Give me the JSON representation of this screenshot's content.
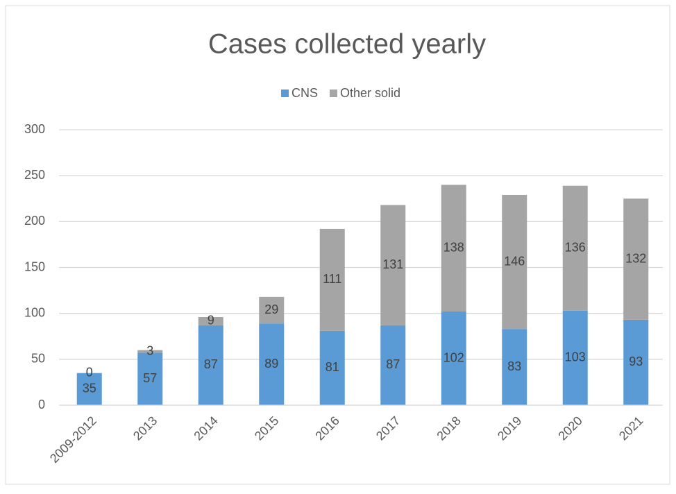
{
  "chart_data": {
    "type": "stacked_bar",
    "title": "Cases collected yearly",
    "categories": [
      "2009-2012",
      "2013",
      "2014",
      "2015",
      "2016",
      "2017",
      "2018",
      "2019",
      "2020",
      "2021"
    ],
    "series": [
      {
        "name": "CNS",
        "color": "#5b9bd5",
        "values": [
          35,
          57,
          87,
          89,
          81,
          87,
          102,
          83,
          103,
          93
        ]
      },
      {
        "name": "Other solid",
        "color": "#a5a5a5",
        "values": [
          0,
          3,
          9,
          29,
          111,
          131,
          138,
          146,
          136,
          132
        ]
      }
    ],
    "ylim": [
      0,
      300
    ],
    "yticks": [
      0,
      50,
      100,
      150,
      200,
      250,
      300
    ],
    "grid": true,
    "legend": "top"
  }
}
